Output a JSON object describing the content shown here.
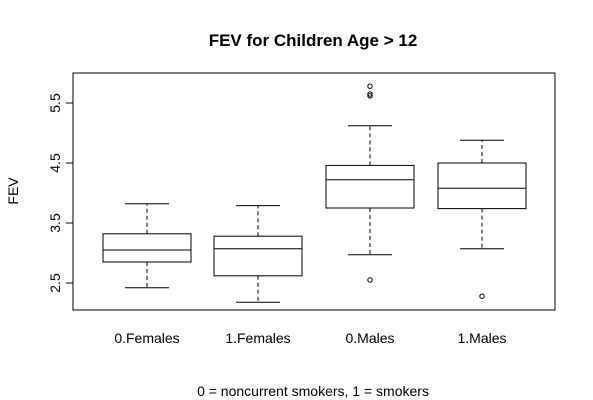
{
  "chart_data": {
    "type": "boxplot",
    "title": "FEV for Children Age > 12",
    "xlabel": "0 = noncurrent smokers, 1 = smokers",
    "ylabel": "FEV",
    "ylim": [
      2.05,
      6.0
    ],
    "yticks": [
      2.5,
      3.5,
      4.5,
      5.5
    ],
    "ytick_labels": [
      "2.5",
      "3.5",
      "4.5",
      "5.5"
    ],
    "grid": false,
    "categories": [
      "0.Females",
      "1.Females",
      "0.Males",
      "1.Males"
    ],
    "boxes": [
      {
        "min": 2.42,
        "q1": 2.85,
        "median": 3.05,
        "q3": 3.32,
        "max": 3.82,
        "outliers": []
      },
      {
        "min": 2.18,
        "q1": 2.62,
        "median": 3.07,
        "q3": 3.28,
        "max": 3.79,
        "outliers": []
      },
      {
        "min": 2.97,
        "q1": 3.75,
        "median": 4.22,
        "q3": 4.46,
        "max": 5.12,
        "outliers": [
          2.55,
          5.62,
          5.65,
          5.78
        ]
      },
      {
        "min": 3.07,
        "q1": 3.74,
        "median": 4.08,
        "q3": 4.5,
        "max": 4.88,
        "outliers": [
          2.28
        ]
      }
    ]
  }
}
